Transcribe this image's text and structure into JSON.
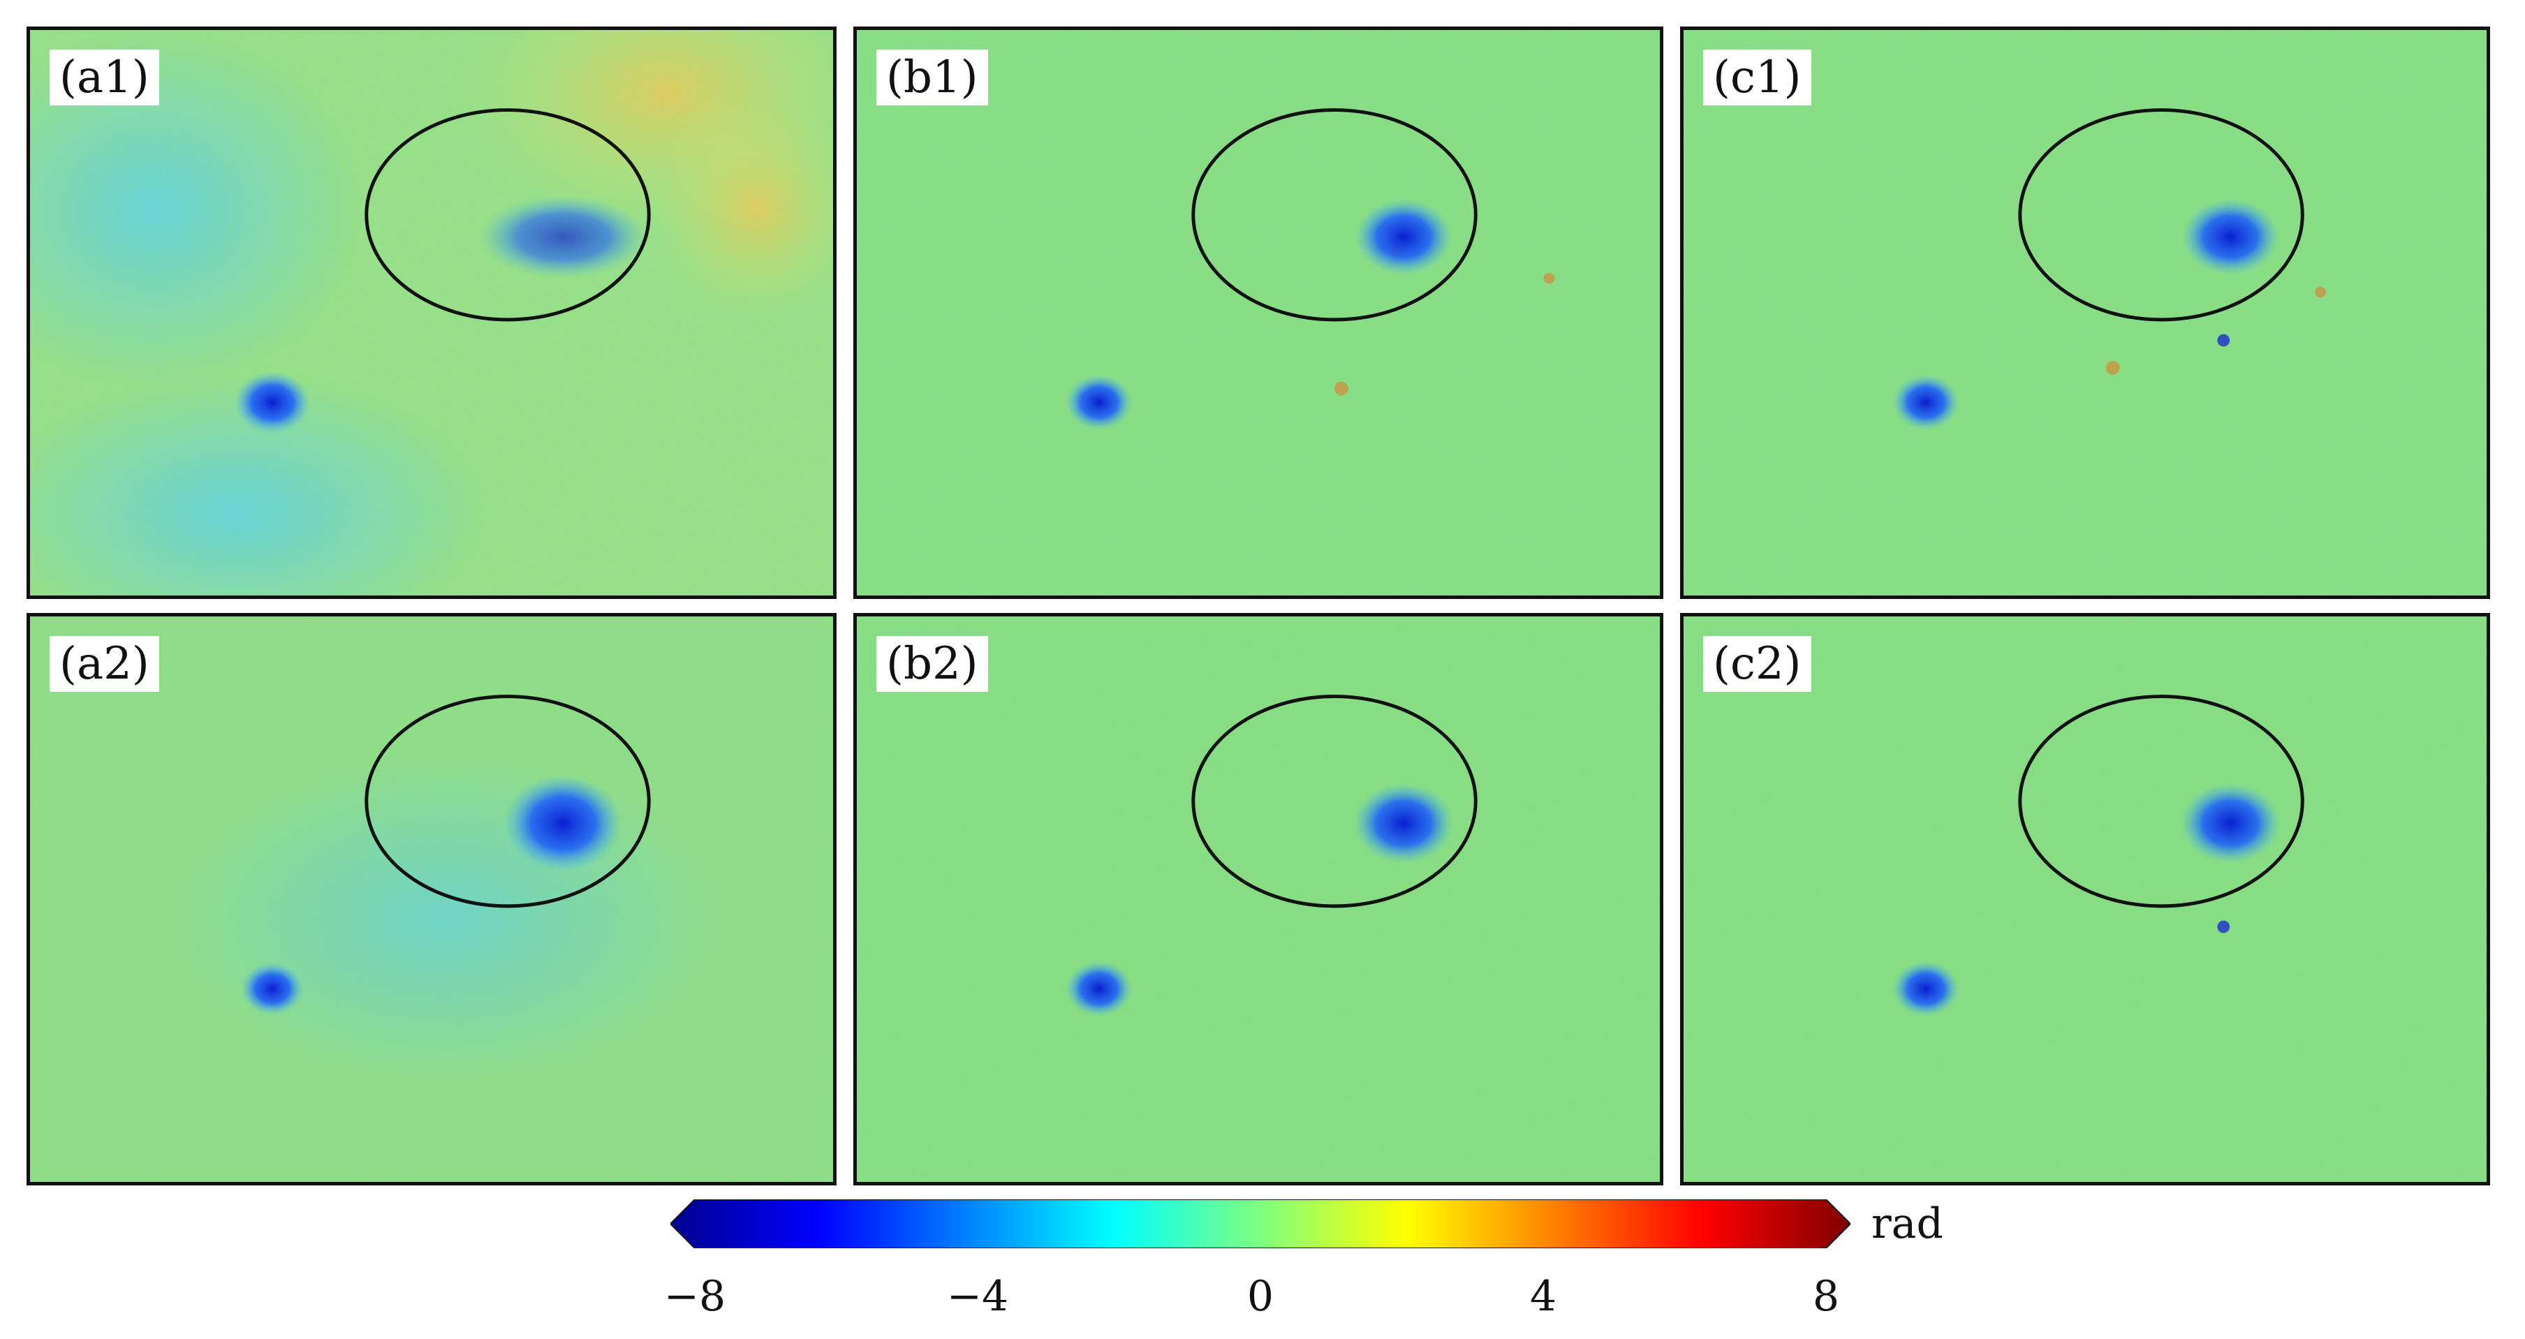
{
  "panels": [
    {
      "label": "(a1)",
      "variant": "noisy"
    },
    {
      "label": "(b1)",
      "variant": "speckled"
    },
    {
      "label": "(c1)",
      "variant": "speckled"
    },
    {
      "label": "(a2)",
      "variant": "smooth"
    },
    {
      "label": "(b2)",
      "variant": "smooth"
    },
    {
      "label": "(c2)",
      "variant": "smooth"
    }
  ],
  "colorbar": {
    "min": -8,
    "max": 8,
    "ticks": [
      "−8",
      "−4",
      "0",
      "4",
      "8"
    ],
    "unit": "rad",
    "colormap": "jet",
    "colors": [
      "#00008f",
      "#0000ff",
      "#00ffff",
      "#ffff00",
      "#ff0000",
      "#800000"
    ]
  },
  "colors": {
    "background_field": "#7ed97a",
    "deformation_core": "#0a1fd1",
    "ellipse_outline": "#111111"
  }
}
